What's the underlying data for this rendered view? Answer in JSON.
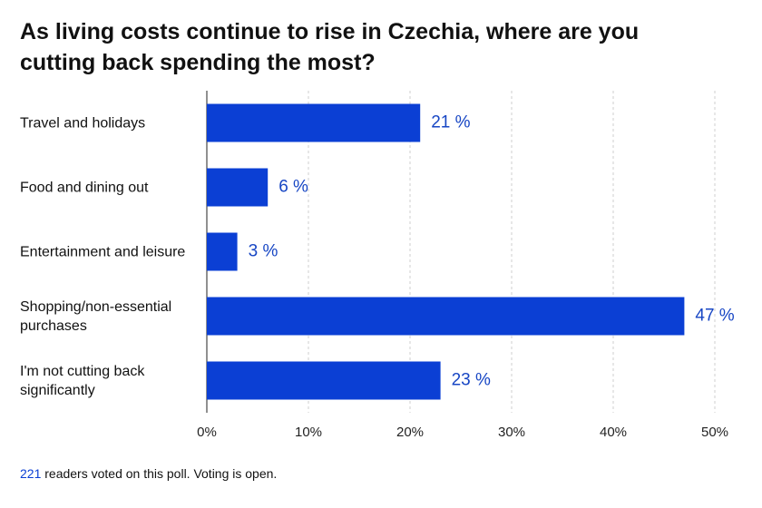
{
  "chart_data": {
    "type": "bar",
    "orientation": "horizontal",
    "title": "As living costs continue to rise in Czechia, where are you cutting back spending the most?",
    "categories": [
      "Travel and holidays",
      "Food and dining out",
      "Entertainment and leisure",
      "Shopping/non-essential purchases",
      "I'm not cutting back significantly"
    ],
    "values": [
      21,
      6,
      3,
      47,
      23
    ],
    "value_labels": [
      "21 %",
      "6 %",
      "3 %",
      "47 %",
      "23 %"
    ],
    "color": "#0b3fd4",
    "xlim": [
      0,
      50
    ],
    "xticks": [
      {
        "value": 0,
        "label": "0%"
      },
      {
        "value": 10,
        "label": "10%"
      },
      {
        "value": 20,
        "label": "20%"
      },
      {
        "value": 30,
        "label": "30%"
      },
      {
        "value": 40,
        "label": "40%"
      },
      {
        "value": 50,
        "label": "50%"
      }
    ],
    "grid": true
  },
  "footer": {
    "votes": 221,
    "text": "readers voted on this poll. Voting is open."
  }
}
